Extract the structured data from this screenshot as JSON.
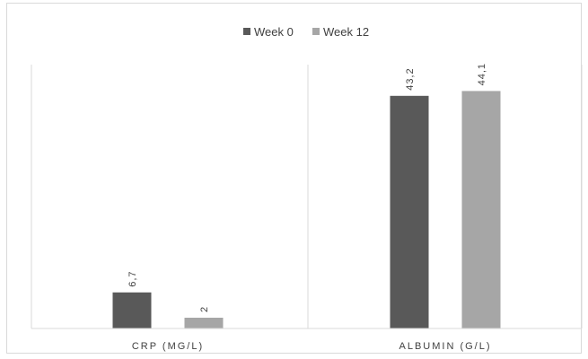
{
  "chart_data": {
    "type": "bar",
    "categories": [
      "CRP (MG/L)",
      "ALBUMIN (G/L)"
    ],
    "category_scales": [
      [
        0,
        50
      ],
      [
        0,
        50
      ]
    ],
    "series": [
      {
        "name": "Week 0",
        "color": "#595959",
        "values": [
          6.7,
          43.2
        ],
        "labels": [
          "6,7",
          "43,2"
        ]
      },
      {
        "name": "Week 12",
        "color": "#a6a6a6",
        "values": [
          2,
          44.1
        ],
        "labels": [
          "2",
          "44,1"
        ]
      }
    ],
    "legend_position": "top",
    "grid": false,
    "title": "",
    "xlabel": "",
    "ylabel": ""
  }
}
